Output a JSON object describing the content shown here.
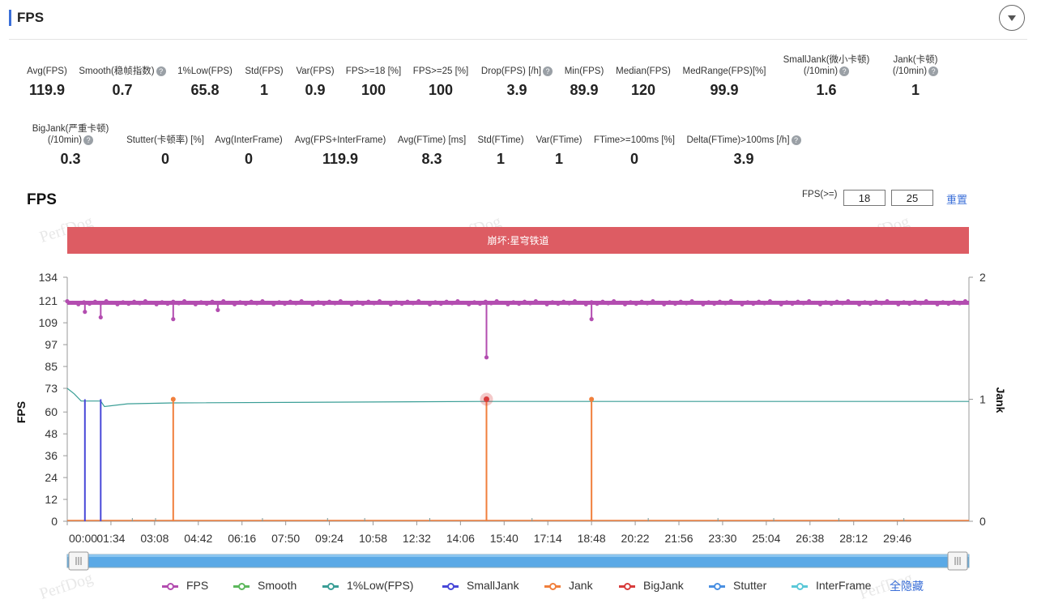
{
  "header": {
    "title": "FPS"
  },
  "metrics_row1": [
    {
      "label": "Avg(FPS)",
      "value": "119.9",
      "help": false
    },
    {
      "label": "Smooth(稳帧指数)",
      "value": "0.7",
      "help": true
    },
    {
      "label": "1%Low(FPS)",
      "value": "65.8",
      "help": false
    },
    {
      "label": "Std(FPS)",
      "value": "1",
      "help": false
    },
    {
      "label": "Var(FPS)",
      "value": "0.9",
      "help": false
    },
    {
      "label": "FPS>=18 [%]",
      "value": "100",
      "help": false
    },
    {
      "label": "FPS>=25 [%]",
      "value": "100",
      "help": false
    },
    {
      "label": "Drop(FPS) [/h]",
      "value": "3.9",
      "help": true
    },
    {
      "label": "Min(FPS)",
      "value": "89.9",
      "help": false
    },
    {
      "label": "Median(FPS)",
      "value": "120",
      "help": false
    },
    {
      "label": "MedRange(FPS)[%]",
      "value": "99.9",
      "help": false
    },
    {
      "label": "SmallJank(微小卡顿)",
      "label2": "(/10min)",
      "value": "1.6",
      "help": true
    },
    {
      "label": "Jank(卡顿)",
      "label2": "(/10min)",
      "value": "1",
      "help": true
    }
  ],
  "metrics_row2": [
    {
      "label": "BigJank(严重卡顿)",
      "label2": "(/10min)",
      "value": "0.3",
      "help": true
    },
    {
      "label": "Stutter(卡顿率) [%]",
      "value": "0",
      "help": false
    },
    {
      "label": "Avg(InterFrame)",
      "value": "0",
      "help": false
    },
    {
      "label": "Avg(FPS+InterFrame)",
      "value": "119.9",
      "help": false
    },
    {
      "label": "Avg(FTime) [ms]",
      "value": "8.3",
      "help": false
    },
    {
      "label": "Std(FTime)",
      "value": "1",
      "help": false
    },
    {
      "label": "Var(FTime)",
      "value": "1",
      "help": false
    },
    {
      "label": "FTime>=100ms [%]",
      "value": "0",
      "help": false
    },
    {
      "label": "Delta(FTime)>100ms [/h]",
      "value": "3.9",
      "help": true
    }
  ],
  "chart_section": {
    "title": "FPS",
    "threshold_label": "FPS(>=)",
    "threshold_1": "18",
    "threshold_2": "25",
    "reset_label": "重置",
    "watermark": "PerfDog"
  },
  "colors": {
    "fps": "#b34db0",
    "smooth": "#5cb85c",
    "low1": "#3a9e96",
    "smalljank": "#4848d8",
    "jank": "#f07f3c",
    "bigjank": "#d83c3c",
    "stutter": "#4a90e2",
    "interframe": "#5bc8d8",
    "app_band": "#dd5c63"
  },
  "chart_data": {
    "type": "line",
    "app_label": "崩坏:星穹铁道",
    "ylabel_left": "FPS",
    "ylabel_right": "Jank",
    "yticks_left": [
      "0",
      "12",
      "24",
      "36",
      "48",
      "60",
      "73",
      "85",
      "97",
      "109",
      "121",
      "134"
    ],
    "ylim_left": [
      0,
      134
    ],
    "yticks_right": [
      "0",
      "1",
      "2"
    ],
    "ylim_right": [
      0,
      2
    ],
    "xlim_seconds": [
      0,
      1940
    ],
    "xticks": [
      {
        "t": 0,
        "label": "00:00"
      },
      {
        "t": 94,
        "label": "01:34"
      },
      {
        "t": 188,
        "label": "03:08"
      },
      {
        "t": 282,
        "label": "04:42"
      },
      {
        "t": 376,
        "label": "06:16"
      },
      {
        "t": 470,
        "label": "07:50"
      },
      {
        "t": 564,
        "label": "09:24"
      },
      {
        "t": 658,
        "label": "10:58"
      },
      {
        "t": 752,
        "label": "12:32"
      },
      {
        "t": 846,
        "label": "14:06"
      },
      {
        "t": 940,
        "label": "15:40"
      },
      {
        "t": 1034,
        "label": "17:14"
      },
      {
        "t": 1128,
        "label": "18:48"
      },
      {
        "t": 1222,
        "label": "20:22"
      },
      {
        "t": 1316,
        "label": "21:56"
      },
      {
        "t": 1410,
        "label": "23:30"
      },
      {
        "t": 1504,
        "label": "25:04"
      },
      {
        "t": 1598,
        "label": "26:38"
      },
      {
        "t": 1692,
        "label": "28:12"
      },
      {
        "t": 1786,
        "label": "29:46"
      }
    ],
    "fps_base": 120,
    "fps_dips": [
      {
        "t": 38,
        "v": 115
      },
      {
        "t": 72,
        "v": 112
      },
      {
        "t": 228,
        "v": 111
      },
      {
        "t": 324,
        "v": 116
      },
      {
        "t": 902,
        "v": 90
      },
      {
        "t": 1128,
        "v": 111
      }
    ],
    "low1_points": [
      {
        "t": 0,
        "v": 73
      },
      {
        "t": 15,
        "v": 70
      },
      {
        "t": 30,
        "v": 66
      },
      {
        "t": 72,
        "v": 66
      },
      {
        "t": 80,
        "v": 63
      },
      {
        "t": 130,
        "v": 64.5
      },
      {
        "t": 228,
        "v": 65
      },
      {
        "t": 900,
        "v": 65.8
      },
      {
        "t": 1940,
        "v": 65.8
      }
    ],
    "smalljank_events": [
      {
        "t": 38,
        "v": 1
      },
      {
        "t": 72,
        "v": 1
      }
    ],
    "jank_events": [
      {
        "t": 228,
        "v": 1
      },
      {
        "t": 1128,
        "v": 1
      }
    ],
    "bigjank_events": [
      {
        "t": 902,
        "v": 1
      }
    ],
    "series_names": [
      "FPS",
      "Smooth",
      "1%Low(FPS)",
      "SmallJank",
      "Jank",
      "BigJank",
      "Stutter",
      "InterFrame"
    ],
    "hide_all_label": "全隐藏"
  }
}
